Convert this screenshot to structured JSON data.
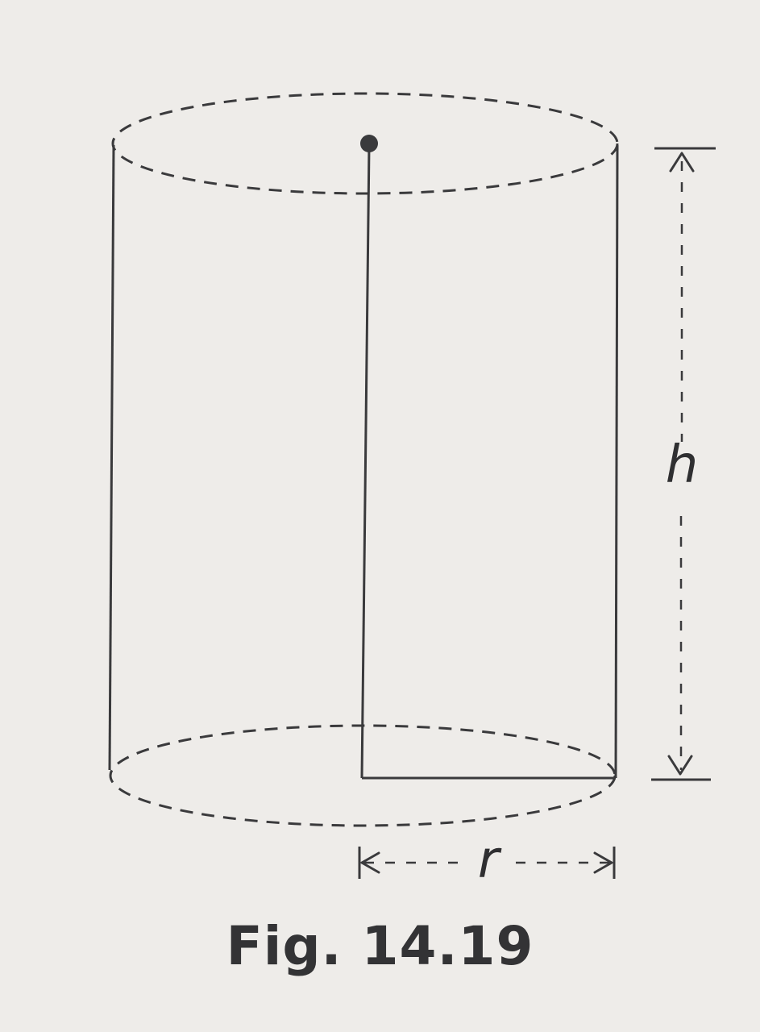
{
  "figure": {
    "height_label": "h",
    "radius_label": "r",
    "caption": "Fig. 14.19"
  }
}
